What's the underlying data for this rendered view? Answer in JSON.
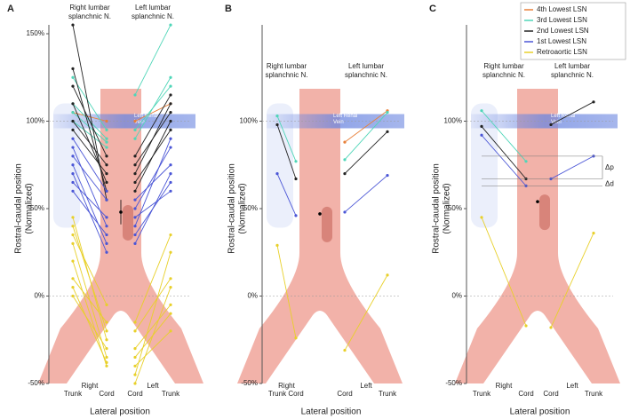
{
  "chart_data": [
    {
      "type": "line",
      "panel_label": "A",
      "categories": [
        "Trunk",
        "Cord",
        "Cord",
        "Trunk"
      ],
      "groups": [
        "Right",
        "Left"
      ],
      "xlabel": "Lateral position",
      "ylabel": [
        "Rostral-caudal position",
        "(Normalized)"
      ],
      "top_labels": [
        [
          "Right lumbar",
          "splanchnic N."
        ],
        [
          "Left lumbar",
          "splanchnic N."
        ]
      ],
      "vein_label": [
        "Left Renal",
        "Vein"
      ],
      "ylim": [
        -50,
        150
      ],
      "yticks": [
        {
          "value": -50,
          "label": "-50%"
        },
        {
          "value": 0,
          "label": "0%"
        },
        {
          "value": 50,
          "label": "50%"
        },
        {
          "value": 100,
          "label": "100%"
        },
        {
          "value": 150,
          "label": "150%"
        }
      ],
      "mean": 48,
      "mean_error": 7,
      "series": [
        {
          "name": "4th Lowest LSN",
          "color": "#e8803a",
          "values": [
            [
              105,
              100,
              null,
              null
            ],
            [
              null,
              null,
              100,
              110
            ]
          ]
        },
        {
          "name": "3rd Lowest LSN",
          "color": "#4fd6b8",
          "values": [
            [
              125,
              95,
              null,
              null
            ],
            [
              110,
              90,
              null,
              null
            ],
            [
              100,
              85,
              null,
              null
            ],
            [
              105,
              88,
              null,
              null
            ],
            [
              null,
              null,
              115,
              155
            ],
            [
              null,
              null,
              90,
              125
            ],
            [
              null,
              null,
              95,
              120
            ]
          ]
        },
        {
          "name": "2nd Lowest LSN",
          "color": "#222222",
          "values": [
            [
              155,
              55,
              null,
              null
            ],
            [
              130,
              60,
              null,
              null
            ],
            [
              110,
              65,
              null,
              null
            ],
            [
              100,
              75,
              null,
              null
            ],
            [
              95,
              70,
              null,
              null
            ],
            [
              120,
              80,
              null,
              null
            ],
            [
              null,
              null,
              60,
              100
            ],
            [
              null,
              null,
              70,
              110
            ],
            [
              null,
              null,
              65,
              95
            ],
            [
              null,
              null,
              75,
              105
            ],
            [
              null,
              null,
              80,
              115
            ]
          ]
        },
        {
          "name": "1st Lowest LSN",
          "color": "#4a55d6",
          "values": [
            [
              85,
              40,
              null,
              null
            ],
            [
              75,
              30,
              null,
              null
            ],
            [
              70,
              25,
              null,
              null
            ],
            [
              80,
              55,
              null,
              null
            ],
            [
              65,
              45,
              null,
              null
            ],
            [
              90,
              60,
              null,
              null
            ],
            [
              60,
              35,
              null,
              null
            ],
            [
              null,
              null,
              45,
              60
            ],
            [
              null,
              null,
              50,
              85
            ],
            [
              null,
              null,
              55,
              75
            ],
            [
              null,
              null,
              35,
              65
            ],
            [
              null,
              null,
              40,
              90
            ],
            [
              null,
              null,
              30,
              70
            ]
          ]
        },
        {
          "name": "Retroaortic LSN",
          "color": "#e8d02a",
          "values": [
            [
              40,
              -20,
              null,
              null
            ],
            [
              30,
              -35,
              null,
              null
            ],
            [
              20,
              -40,
              null,
              null
            ],
            [
              10,
              -15,
              null,
              null
            ],
            [
              0,
              -30,
              null,
              null
            ],
            [
              45,
              -25,
              null,
              null
            ],
            [
              35,
              -5,
              null,
              null
            ],
            [
              5,
              -38,
              null,
              null
            ],
            [
              null,
              null,
              -20,
              10
            ],
            [
              null,
              null,
              -30,
              -5
            ],
            [
              null,
              null,
              -45,
              25
            ],
            [
              null,
              null,
              -35,
              -10
            ],
            [
              null,
              null,
              -50,
              5
            ],
            [
              null,
              null,
              -15,
              35
            ],
            [
              null,
              null,
              -40,
              -20
            ]
          ]
        }
      ]
    },
    {
      "type": "line",
      "panel_label": "B",
      "categories": [
        "Trunk",
        "Cord",
        "Cord",
        "Trunk"
      ],
      "groups": [
        "Right",
        "Left"
      ],
      "xlabel": "Lateral position",
      "ylabel": [
        "Rostral-caudal position",
        "(Normalized)"
      ],
      "top_labels": [
        [
          "Right lumbar",
          "splanchnic N."
        ],
        [
          "Left lumbar",
          "splanchnic N."
        ]
      ],
      "vein_label": [
        "Left Renal",
        "Vein"
      ],
      "ylim": [
        -50,
        150
      ],
      "yticks": [
        {
          "value": -50,
          "label": "-50%"
        },
        {
          "value": 0,
          "label": "0%"
        },
        {
          "value": 50,
          "label": "50%"
        },
        {
          "value": 100,
          "label": "100%"
        }
      ],
      "mean": 47,
      "series": [
        {
          "color": "#e8803a",
          "values": [
            [
              null,
              null,
              88,
              106
            ]
          ]
        },
        {
          "color": "#4fd6b8",
          "values": [
            [
              103,
              77,
              null,
              null
            ],
            [
              null,
              null,
              78,
              105
            ]
          ]
        },
        {
          "color": "#222222",
          "values": [
            [
              98,
              67,
              null,
              null
            ],
            [
              null,
              null,
              70,
              94
            ]
          ]
        },
        {
          "color": "#4a55d6",
          "values": [
            [
              70,
              46,
              null,
              null
            ],
            [
              null,
              null,
              48,
              69
            ]
          ]
        },
        {
          "color": "#e8d02a",
          "values": [
            [
              29,
              -24,
              null,
              null
            ],
            [
              null,
              null,
              -31,
              12
            ]
          ]
        }
      ]
    },
    {
      "type": "line",
      "panel_label": "C",
      "categories": [
        "Trunk",
        "Cord",
        "Cord",
        "Trunk"
      ],
      "groups": [
        "Right",
        "Left"
      ],
      "xlabel": "Lateral position",
      "ylabel": [
        "Rostral-caudal position",
        "(Normalized)"
      ],
      "top_labels": [
        [
          "Right lumbar",
          "splanchnic N."
        ],
        [
          "Left lumbar",
          "splanchnic N."
        ]
      ],
      "vein_label": [
        "Left Renal",
        "Vein"
      ],
      "ylim": [
        -50,
        150
      ],
      "yticks": [
        {
          "value": -50,
          "label": "-50%"
        },
        {
          "value": 0,
          "label": "0%"
        },
        {
          "value": 50,
          "label": "50%"
        },
        {
          "value": 100,
          "label": "100%"
        }
      ],
      "mean": 54,
      "delta_labels": [
        "Δp",
        "Δd"
      ],
      "series": [
        {
          "color": "#4fd6b8",
          "values": [
            [
              106,
              77,
              null,
              null
            ]
          ]
        },
        {
          "color": "#222222",
          "values": [
            [
              97,
              67,
              null,
              null
            ],
            [
              null,
              null,
              98,
              111
            ]
          ]
        },
        {
          "color": "#4a55d6",
          "values": [
            [
              92,
              63,
              null,
              null
            ],
            [
              null,
              null,
              67,
              80
            ]
          ]
        },
        {
          "color": "#e8d02a",
          "values": [
            [
              45,
              -17,
              null,
              null
            ],
            [
              null,
              null,
              -18,
              36
            ]
          ]
        }
      ]
    }
  ]
}
